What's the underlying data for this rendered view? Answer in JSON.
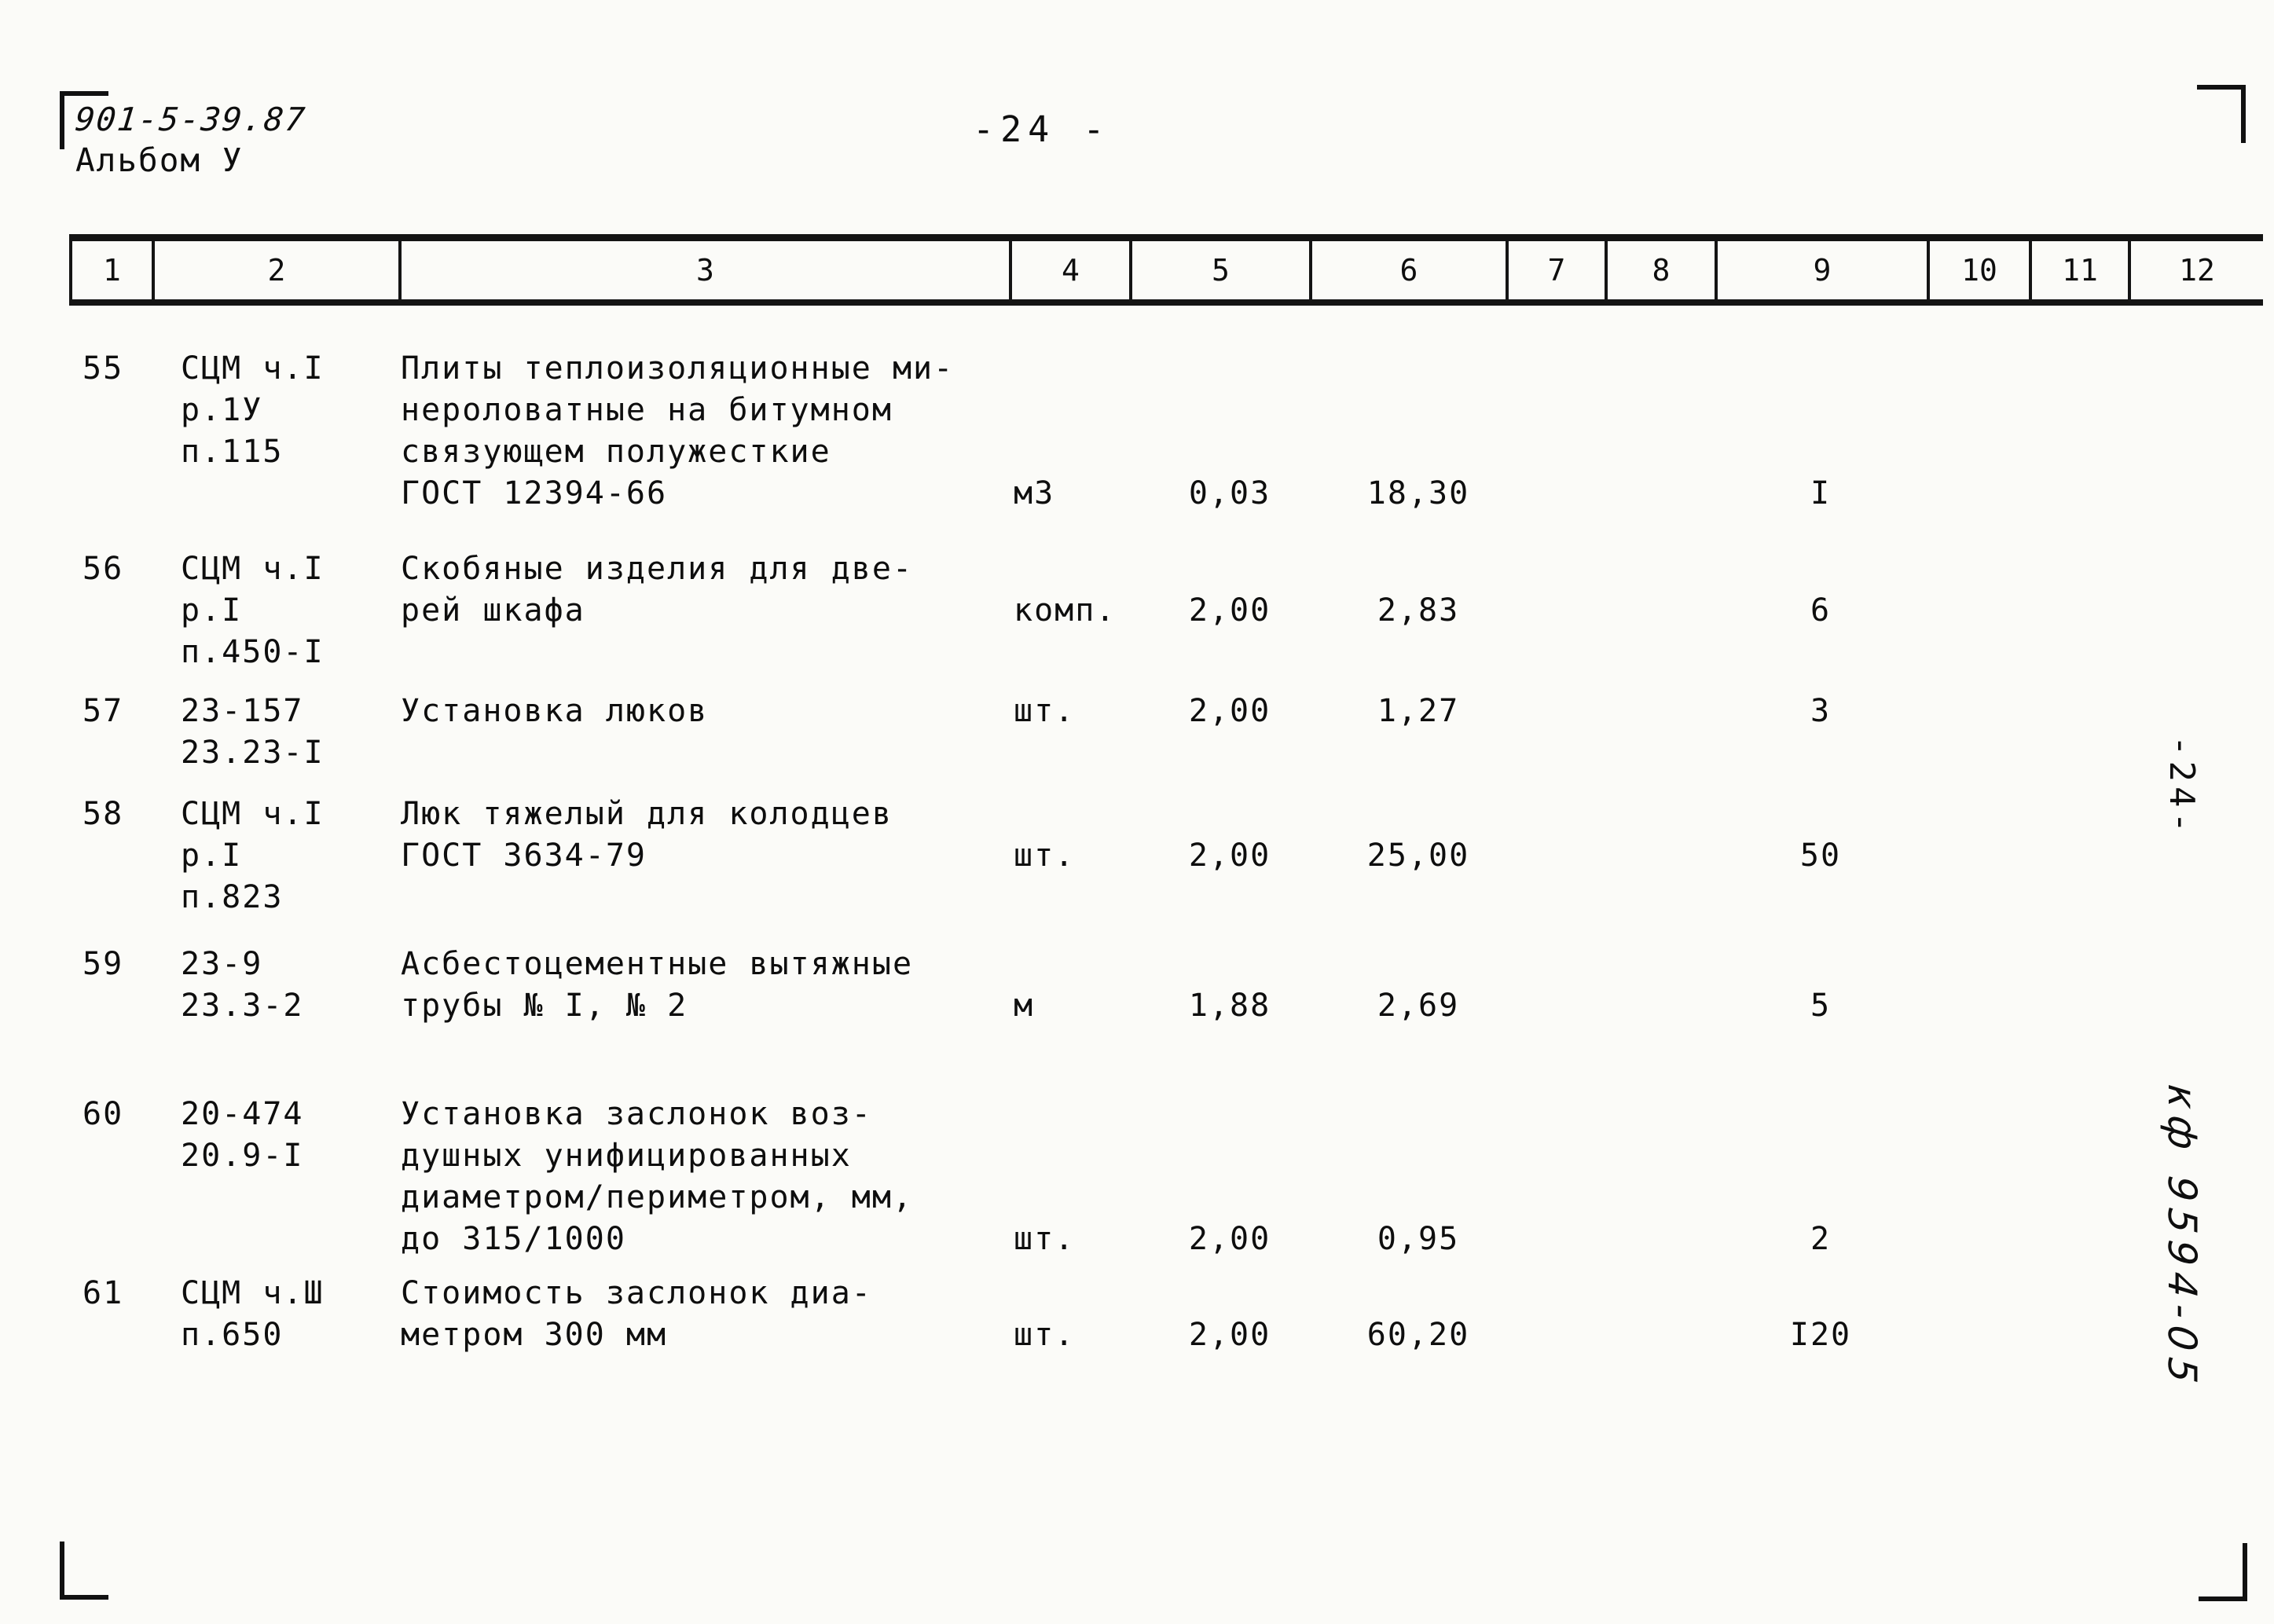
{
  "page": {
    "doc_number": "901-5-39.87",
    "album": "Альбом У",
    "page_number_top": "-24 -",
    "page_number_side": "-24-",
    "side_code": "кф 9594-05"
  },
  "table": {
    "column_headers": [
      "1",
      "2",
      "3",
      "4",
      "5",
      "6",
      "7",
      "8",
      "9",
      "10",
      "11",
      "12"
    ],
    "rows": [
      {
        "num": "55",
        "code": "СЦМ ч.I\nр.1У\nп.115",
        "desc": "Плиты теплоизоляционные ми-\nнероловатные на битумном\nсвязующем полужесткие\nГОСТ 12394-66",
        "unit": "м3",
        "qty": "0,03",
        "price": "18,30",
        "col9": "I"
      },
      {
        "num": "56",
        "code": "СЦМ ч.I\nр.I\nп.450-I",
        "desc": "Скобяные изделия для две-\nрей шкафа",
        "unit": "комп.",
        "qty": "2,00",
        "price": "2,83",
        "col9": "6"
      },
      {
        "num": "57",
        "code": "23-157\n23.23-I",
        "desc": "Установка люков",
        "unit": "шт.",
        "qty": "2,00",
        "price": "1,27",
        "col9": "3"
      },
      {
        "num": "58",
        "code": "СЦМ ч.I\nр.I\nп.823",
        "desc": "Люк тяжелый для колодцев\nГОСТ 3634-79",
        "unit": "шт.",
        "qty": "2,00",
        "price": "25,00",
        "col9": "50"
      },
      {
        "num": "59",
        "code": "23-9\n23.3-2",
        "desc": "Асбестоцементные вытяжные\nтрубы № I, № 2",
        "unit": "м",
        "qty": "1,88",
        "price": "2,69",
        "col9": "5"
      },
      {
        "num": "60",
        "code": "20-474\n20.9-I",
        "desc": "Установка заслонок воз-\nдушных унифицированных\nдиаметром/периметром, мм,\nдо 315/1000",
        "unit": "шт.",
        "qty": "2,00",
        "price": "0,95",
        "col9": "2"
      },
      {
        "num": "61",
        "code": "СЦМ ч.Ш\nп.650",
        "desc": "Стоимость заслонок диа-\nметром 300 мм",
        "unit": "шт.",
        "qty": "2,00",
        "price": "60,20",
        "col9": "I20"
      }
    ]
  }
}
